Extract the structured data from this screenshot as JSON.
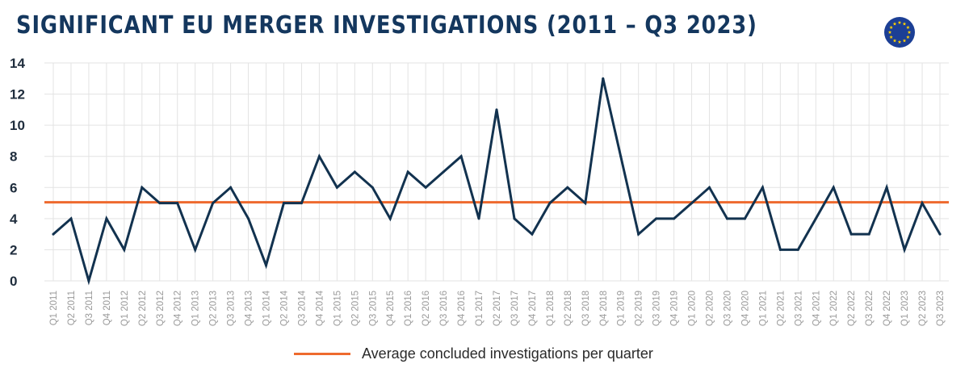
{
  "title": "SIGNIFICANT EU MERGER INVESTIGATIONS (2011 – Q3 2023)",
  "flag_icon": "eu-flag-icon",
  "colors": {
    "title": "#14375e",
    "series": "#12324f",
    "average": "#ee6a2e",
    "grid": "#e3e3e3",
    "tick": "#9a9a9a"
  },
  "chart_data": {
    "type": "line",
    "title": "SIGNIFICANT EU MERGER INVESTIGATIONS (2011 – Q3 2023)",
    "xlabel": "",
    "ylabel": "",
    "ylim": [
      0,
      14
    ],
    "yticks": [
      0,
      2,
      4,
      6,
      8,
      10,
      12,
      14
    ],
    "grid": true,
    "legend_position": "bottom",
    "categories": [
      "Q1 2011",
      "Q2 2011",
      "Q3 2011",
      "Q4 2011",
      "Q1 2012",
      "Q2 2012",
      "Q3 2012",
      "Q4 2012",
      "Q1 2013",
      "Q2 2013",
      "Q3 2013",
      "Q4 2013",
      "Q1 2014",
      "Q2 2014",
      "Q3 2014",
      "Q4 2014",
      "Q1 2015",
      "Q2 2015",
      "Q3 2015",
      "Q4 2015",
      "Q1 2016",
      "Q2 2016",
      "Q3 2016",
      "Q4 2016",
      "Q1 2017",
      "Q2 2017",
      "Q3 2017",
      "Q4 2017",
      "Q1 2018",
      "Q2 2018",
      "Q3 2018",
      "Q4 2018",
      "Q1 2019",
      "Q2 2019",
      "Q3 2019",
      "Q4 2019",
      "Q1 2020",
      "Q2 2020",
      "Q3 2020",
      "Q4 2020",
      "Q1 2021",
      "Q2 2021",
      "Q3 2021",
      "Q4 2021",
      "Q1 2022",
      "Q2 2022",
      "Q3 2022",
      "Q4 2022",
      "Q1 2023",
      "Q2 2023",
      "Q3 2023"
    ],
    "series": [
      {
        "name": "",
        "values": [
          3,
          4,
          0,
          4,
          2,
          6,
          5,
          5,
          2,
          5,
          6,
          4,
          1,
          5,
          5,
          8,
          6,
          7,
          6,
          4,
          7,
          6,
          7,
          8,
          4,
          11,
          4,
          3,
          5,
          6,
          5,
          13,
          8,
          3,
          4,
          4,
          5,
          6,
          4,
          4,
          6,
          2,
          2,
          4,
          6,
          3,
          3,
          6,
          2,
          5,
          3
        ]
      }
    ],
    "reference_lines": [
      {
        "name": "Average concluded investigations per quarter",
        "value": 5.05
      }
    ]
  },
  "legend": {
    "label": "Average concluded investigations per quarter"
  }
}
